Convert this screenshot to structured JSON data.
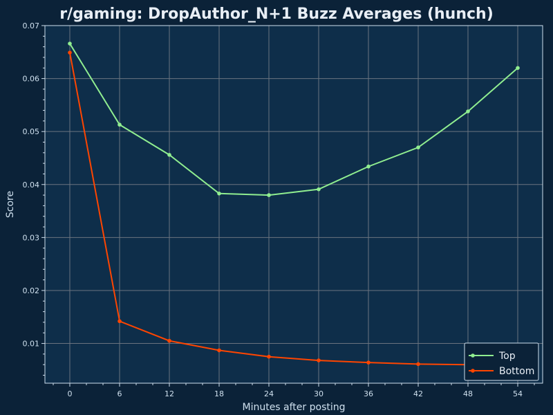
{
  "chart_data": {
    "type": "line",
    "title": "r/gaming: DropAuthor_N+1 Buzz Averages (hunch)",
    "xlabel": "Minutes after posting",
    "ylabel": "Score",
    "x": [
      0,
      6,
      12,
      18,
      24,
      30,
      36,
      42,
      48,
      54
    ],
    "xlim": [
      -3,
      57
    ],
    "ylim": [
      0.0025,
      0.07
    ],
    "xticks": [
      0,
      6,
      12,
      18,
      24,
      30,
      36,
      42,
      48,
      54
    ],
    "yticks": [
      0.01,
      0.02,
      0.03,
      0.04,
      0.05,
      0.06,
      0.07
    ],
    "grid": true,
    "legend_position": "bottom-right",
    "series": [
      {
        "name": "Top",
        "color": "#90ee90",
        "values": [
          0.0666,
          0.0513,
          0.0456,
          0.0383,
          0.038,
          0.0391,
          0.0434,
          0.047,
          0.0538,
          0.062
        ]
      },
      {
        "name": "Bottom",
        "color": "#ff4500",
        "values": [
          0.0649,
          0.0142,
          0.0105,
          0.0087,
          0.0075,
          0.0068,
          0.0064,
          0.0061,
          0.006,
          0.0059
        ]
      }
    ]
  },
  "colors": {
    "background": "#0b2238",
    "plot_background": "#0e2e4a",
    "grid": "#6b7480",
    "axis": "#cfe0ee"
  }
}
